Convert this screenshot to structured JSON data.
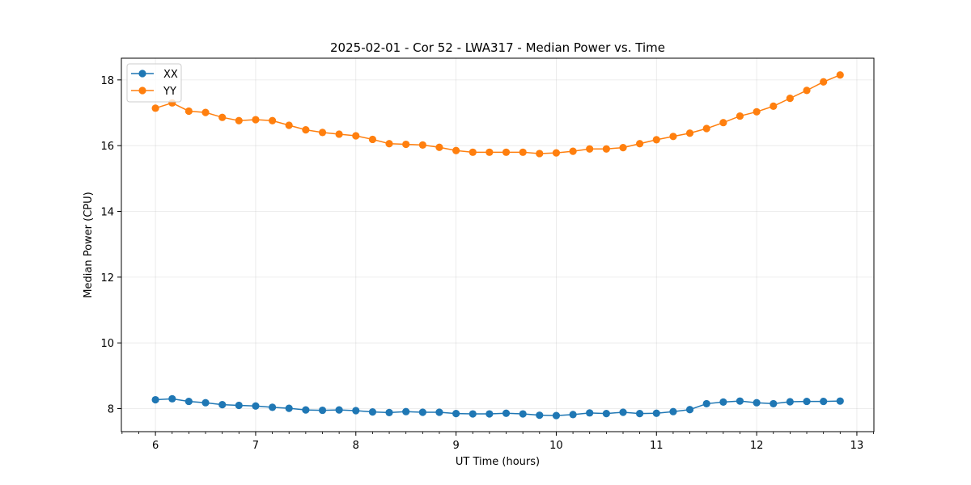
{
  "chart_data": {
    "type": "line",
    "title": "2025-02-01 - Cor 52 - LWA317 - Median Power vs. Time",
    "xlabel": "UT Time (hours)",
    "ylabel": "Median Power (CPU)",
    "xlim": [
      5.66,
      13.17
    ],
    "ylim": [
      7.3,
      18.66
    ],
    "xticks": [
      6,
      7,
      8,
      9,
      10,
      11,
      12,
      13
    ],
    "yticks": [
      8,
      10,
      12,
      14,
      16,
      18
    ],
    "grid": true,
    "legend_position": "top-left",
    "x": [
      6.0,
      6.167,
      6.333,
      6.5,
      6.667,
      6.833,
      7.0,
      7.167,
      7.333,
      7.5,
      7.667,
      7.833,
      8.0,
      8.167,
      8.333,
      8.5,
      8.667,
      8.833,
      9.0,
      9.167,
      9.333,
      9.5,
      9.667,
      9.833,
      10.0,
      10.167,
      10.333,
      10.5,
      10.667,
      10.833,
      11.0,
      11.167,
      11.333,
      11.5,
      11.667,
      11.833,
      12.0,
      12.167,
      12.333,
      12.5,
      12.667,
      12.833
    ],
    "series": [
      {
        "name": "XX",
        "color": "#1f77b4",
        "values": [
          8.27,
          8.3,
          8.22,
          8.18,
          8.12,
          8.1,
          8.08,
          8.04,
          8.01,
          7.96,
          7.95,
          7.96,
          7.94,
          7.9,
          7.88,
          7.91,
          7.89,
          7.89,
          7.85,
          7.84,
          7.84,
          7.86,
          7.84,
          7.8,
          7.79,
          7.82,
          7.87,
          7.85,
          7.89,
          7.85,
          7.86,
          7.91,
          7.97,
          8.15,
          8.2,
          8.23,
          8.18,
          8.15,
          8.21,
          8.22,
          8.22,
          8.23
        ]
      },
      {
        "name": "YY",
        "color": "#ff7f0e",
        "values": [
          17.14,
          17.3,
          17.05,
          17.01,
          16.86,
          16.76,
          16.79,
          16.76,
          16.62,
          16.48,
          16.4,
          16.35,
          16.3,
          16.19,
          16.06,
          16.04,
          16.02,
          15.95,
          15.85,
          15.8,
          15.8,
          15.8,
          15.8,
          15.76,
          15.78,
          15.83,
          15.9,
          15.9,
          15.94,
          16.06,
          16.18,
          16.28,
          16.38,
          16.52,
          16.7,
          16.9,
          17.03,
          17.2,
          17.44,
          17.68,
          17.94,
          18.15
        ]
      }
    ]
  }
}
